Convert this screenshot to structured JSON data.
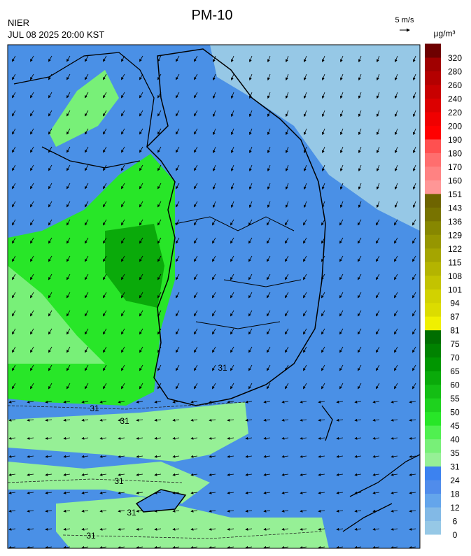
{
  "header": {
    "title": "PM-10",
    "agency": "NIER",
    "datetime": "JUL 08 2025 20:00 KST",
    "wind_scale": "5 m/s"
  },
  "colorbar": {
    "unit": "μg/m³",
    "ticks": [
      0,
      6,
      12,
      18,
      24,
      31,
      35,
      40,
      45,
      50,
      55,
      60,
      65,
      70,
      75,
      81,
      87,
      94,
      101,
      108,
      115,
      122,
      129,
      136,
      143,
      151,
      160,
      170,
      180,
      190,
      200,
      220,
      240,
      260,
      280,
      320
    ],
    "colors": [
      "#96c8e6",
      "#82b9e6",
      "#64a5eb",
      "#508ceb",
      "#3c82f0",
      "#96f096",
      "#78f078",
      "#50f050",
      "#28e628",
      "#1ed21e",
      "#14be14",
      "#0aaa0a",
      "#009600",
      "#008200",
      "#006e00",
      "#f0f000",
      "#dcdc00",
      "#d2d200",
      "#c3c300",
      "#b4b400",
      "#a5a500",
      "#969600",
      "#878700",
      "#787300",
      "#6e6400",
      "#ff9696",
      "#ff8282",
      "#ff6e6e",
      "#ff5050",
      "#ff0000",
      "#f00000",
      "#dc0000",
      "#c80000",
      "#b40000",
      "#a00000",
      "#6e0000"
    ]
  },
  "map": {
    "contour_labels": [
      "31",
      "31",
      "31",
      "31",
      "31",
      "31"
    ]
  }
}
